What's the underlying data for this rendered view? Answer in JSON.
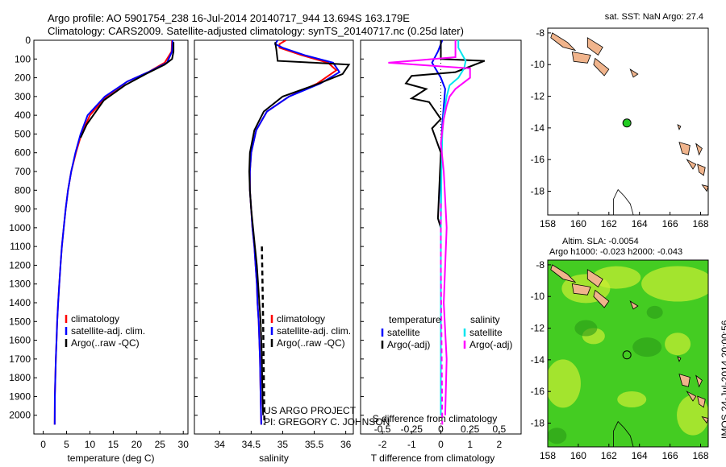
{
  "title_line1": "Argo profile: AO 5901754_238 16-Jul-2014 20140717_944 13.694S 163.179E",
  "title_line2": "Climatology: CARS2009. Satellite-adjusted climatology: synTS_20140717.nc (0.25d later)",
  "side_label": "IMOS 24-Jul-2014 20:00:56",
  "credit_line1": "US ARGO PROJECT",
  "credit_line2": "PI: GREGORY C. JOHNSON",
  "colors": {
    "climatology": "#ff0000",
    "satellite": "#0000ff",
    "argo": "#000000",
    "t_sat": "#00e5ee",
    "argo_adj_s": "#ff00ff",
    "land": "#f0b48c",
    "marker": "#22cc22",
    "sla_green": "#44cc22",
    "sla_yellow": "#ccee33"
  },
  "chart_data": [
    {
      "type": "line",
      "xlabel": "temperature (deg C)",
      "xticks": [
        "0",
        "5",
        "10",
        "15",
        "20",
        "25",
        "30"
      ],
      "xlim": [
        -2,
        31
      ],
      "ylim": [
        2100,
        0
      ],
      "yticks": [
        "0",
        "100",
        "200",
        "300",
        "400",
        "500",
        "600",
        "700",
        "800",
        "900",
        "1000",
        "1100",
        "1200",
        "1300",
        "1400",
        "1500",
        "1600",
        "1700",
        "1800",
        "1900",
        "2000"
      ],
      "legend": [
        "climatology",
        "satellite-adj. clim.",
        "Argo(..raw -QC)"
      ],
      "series": [
        {
          "name": "climatology",
          "x": [
            27.6,
            27.5,
            26.0,
            22.5,
            18.0,
            13.5,
            10.0,
            8.2,
            7.0,
            6.0,
            5.3,
            4.8,
            4.4,
            4.0,
            3.7,
            3.45,
            3.2,
            3.0,
            2.85,
            2.7,
            2.6,
            2.5,
            2.45
          ],
          "y": [
            0,
            60,
            120,
            170,
            220,
            300,
            400,
            500,
            600,
            700,
            800,
            900,
            1000,
            1100,
            1200,
            1300,
            1400,
            1500,
            1600,
            1700,
            1800,
            1900,
            2050
          ]
        },
        {
          "name": "satellite-adj. clim.",
          "x": [
            27.7,
            27.6,
            26.5,
            22.5,
            18.0,
            13.2,
            9.5,
            8.0,
            6.9,
            6.0,
            5.3,
            4.8,
            4.4,
            4.0,
            3.7,
            3.45,
            3.2,
            3.0,
            2.85,
            2.7,
            2.6,
            2.5,
            2.45
          ],
          "y": [
            0,
            60,
            120,
            170,
            220,
            300,
            400,
            500,
            600,
            700,
            800,
            900,
            1000,
            1100,
            1200,
            1300,
            1400,
            1500,
            1600,
            1700,
            1800,
            1900,
            2050
          ]
        },
        {
          "name": "Argo(..raw -QC)",
          "x": [
            27.9,
            27.9,
            27.6,
            26.0,
            22.0,
            17.5,
            13.0,
            9.3,
            8.0
          ],
          "y": [
            10,
            60,
            100,
            130,
            180,
            240,
            320,
            450,
            520
          ]
        }
      ]
    },
    {
      "type": "line",
      "xlabel": "salinity",
      "xticks": [
        "34",
        "34.5",
        "35",
        "35.5",
        "36"
      ],
      "xlim": [
        33.6,
        36.12
      ],
      "ylim": [
        2100,
        0
      ],
      "legend": [
        "climatology",
        "satellite-adj. clim.",
        "Argo(..raw -QC)"
      ],
      "series": [
        {
          "name": "climatology",
          "x": [
            35.05,
            34.95,
            34.95,
            35.3,
            35.72,
            35.85,
            35.55,
            35.1,
            34.75,
            34.58,
            34.5,
            34.48,
            34.48,
            34.5,
            34.52,
            34.55,
            34.57,
            34.59,
            34.6,
            34.62,
            34.63,
            34.64,
            34.65,
            34.66
          ],
          "y": [
            0,
            20,
            40,
            80,
            120,
            160,
            230,
            300,
            380,
            480,
            600,
            700,
            800,
            900,
            1000,
            1100,
            1200,
            1300,
            1400,
            1500,
            1600,
            1700,
            1900,
            2050
          ]
        },
        {
          "name": "satellite-adj. clim.",
          "x": [
            34.92,
            34.88,
            35.0,
            35.35,
            35.8,
            35.9,
            35.6,
            35.1,
            34.75,
            34.58,
            34.5,
            34.48,
            34.48,
            34.5,
            34.52,
            34.55,
            34.57,
            34.59,
            34.6,
            34.62,
            34.63,
            34.64,
            34.65,
            34.66
          ],
          "y": [
            0,
            20,
            40,
            80,
            120,
            170,
            230,
            300,
            380,
            480,
            600,
            700,
            800,
            900,
            1000,
            1100,
            1200,
            1300,
            1400,
            1500,
            1600,
            1700,
            1900,
            2050
          ]
        },
        {
          "name": "Argo(..raw -QC)",
          "x": [
            34.88,
            34.9,
            34.92,
            35.5,
            36.05,
            35.95,
            35.5,
            35.0,
            34.7,
            34.55,
            34.48,
            34.47,
            34.48,
            34.5,
            34.53,
            34.56,
            34.59,
            34.61,
            34.63,
            34.65,
            34.66,
            34.67,
            34.68,
            34.69
          ],
          "y": [
            10,
            50,
            110,
            120,
            130,
            180,
            240,
            300,
            380,
            480,
            600,
            700,
            800,
            900,
            1000,
            1100,
            1200,
            1300,
            1400,
            1500,
            1600,
            1700,
            1900,
            2000
          ]
        }
      ]
    },
    {
      "type": "line",
      "xlabel": "T difference from climatology",
      "xlabel2": "S difference from climatology",
      "xticks": [
        "-2",
        "-1",
        "0",
        "1",
        "2"
      ],
      "xticks2": [
        "-0.5",
        "-0.25",
        "0",
        "0.25",
        "0.5"
      ],
      "xlim": [
        -2.75,
        2.75
      ],
      "ylim": [
        2100,
        0
      ],
      "legend_left_title": "temperature",
      "legend_right_title": "salinity",
      "legend_left": [
        "satellite",
        "Argo(-adj)"
      ],
      "legend_right": [
        "satellite",
        "Argo(-adj)"
      ],
      "series": [
        {
          "name": "temperature satellite",
          "x": [
            0.05,
            -0.1,
            -0.3,
            0.0,
            0.15,
            0.1,
            0.05,
            0.0,
            0.0,
            0.0,
            0.0
          ],
          "y": [
            0,
            60,
            120,
            200,
            260,
            350,
            450,
            600,
            800,
            1200,
            2000
          ]
        },
        {
          "name": "temperature Argo(-adj)",
          "x": [
            0.0,
            0.0,
            1.5,
            0.5,
            -1.0,
            -1.2,
            -0.5,
            -1.0,
            -0.4,
            0.0,
            -0.3,
            0.0,
            -0.1,
            0.0,
            0.0,
            0.0
          ],
          "y": [
            0,
            100,
            110,
            170,
            190,
            230,
            260,
            310,
            330,
            420,
            470,
            600,
            950,
            1000,
            1500,
            2000
          ]
        },
        {
          "name": "salinity satellite",
          "x": [
            0.6,
            0.6,
            0.85,
            0.8,
            0.6,
            0.3,
            0.2,
            0.1,
            0.05,
            0.02,
            0.0,
            0.0
          ],
          "y": [
            0,
            40,
            110,
            150,
            200,
            240,
            300,
            400,
            500,
            700,
            1000,
            2000
          ]
        },
        {
          "name": "salinity Argo(-adj)",
          "x": [
            0.5,
            0.5,
            -1.8,
            1.0,
            1.0,
            0.5,
            0.3,
            0.2,
            0.1,
            0.0,
            0.1,
            0.2,
            0.1,
            0.2,
            0.15
          ],
          "y": [
            0,
            90,
            120,
            150,
            200,
            260,
            300,
            350,
            420,
            550,
            700,
            1000,
            1400,
            1700,
            2000
          ]
        }
      ]
    },
    {
      "type": "map",
      "title": "sat. SST: NaN Argo: 27.4",
      "xticks": [
        "158",
        "160",
        "162",
        "164",
        "166",
        "168"
      ],
      "yticks": [
        "-8",
        "-10",
        "-12",
        "-14",
        "-16",
        "-18"
      ],
      "xlim": [
        158,
        168.5
      ],
      "ylim": [
        -19.5,
        -7.7
      ],
      "marker": {
        "lon": 163.18,
        "lat": -13.69
      }
    },
    {
      "type": "heatmap",
      "title": "Altim. SLA: -0.0054",
      "subtitle": "Argo h1000: -0.023 h2000: -0.043",
      "xticks": [
        "158",
        "160",
        "162",
        "164",
        "166",
        "168"
      ],
      "yticks": [
        "-8",
        "-10",
        "-12",
        "-14",
        "-16",
        "-18"
      ],
      "xlim": [
        158,
        168.5
      ],
      "ylim": [
        -19.5,
        -7.7
      ],
      "marker": {
        "lon": 163.18,
        "lat": -13.69
      }
    }
  ]
}
